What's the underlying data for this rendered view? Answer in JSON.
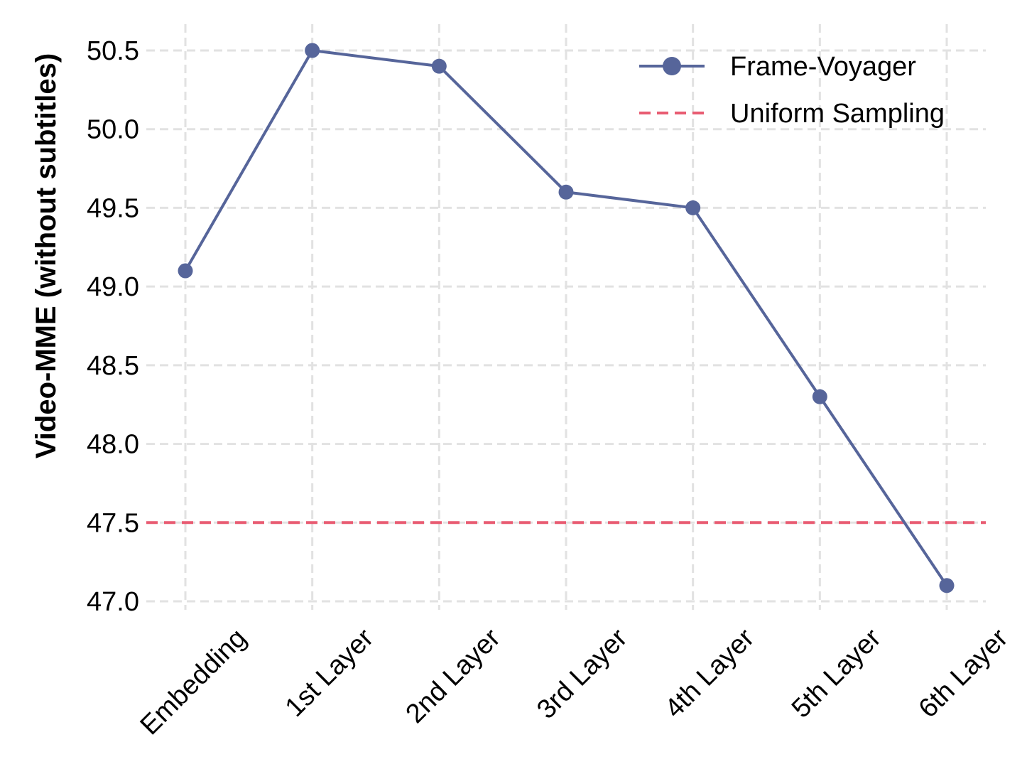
{
  "chart_data": {
    "type": "line",
    "title": "",
    "xlabel": "",
    "ylabel": "Video-MME (without subtitles)",
    "categories": [
      "Embedding",
      "1st Layer",
      "2nd Layer",
      "3rd Layer",
      "4th Layer",
      "5th Layer",
      "6th Layer"
    ],
    "series": [
      {
        "name": "Frame-Voyager",
        "values": [
          49.1,
          50.5,
          50.4,
          49.6,
          49.5,
          48.3,
          47.1
        ],
        "color": "#56659a",
        "style": "solid",
        "marker": "circle"
      }
    ],
    "reference_lines": [
      {
        "name": "Uniform Sampling",
        "value": 47.5,
        "color": "#e85c72",
        "style": "dashed"
      }
    ],
    "ylim": [
      47.0,
      50.5
    ],
    "yticks": [
      "47.0",
      "47.5",
      "48.0",
      "48.5",
      "49.0",
      "49.5",
      "50.0",
      "50.5"
    ],
    "grid": true,
    "legend_position": "top-right"
  }
}
